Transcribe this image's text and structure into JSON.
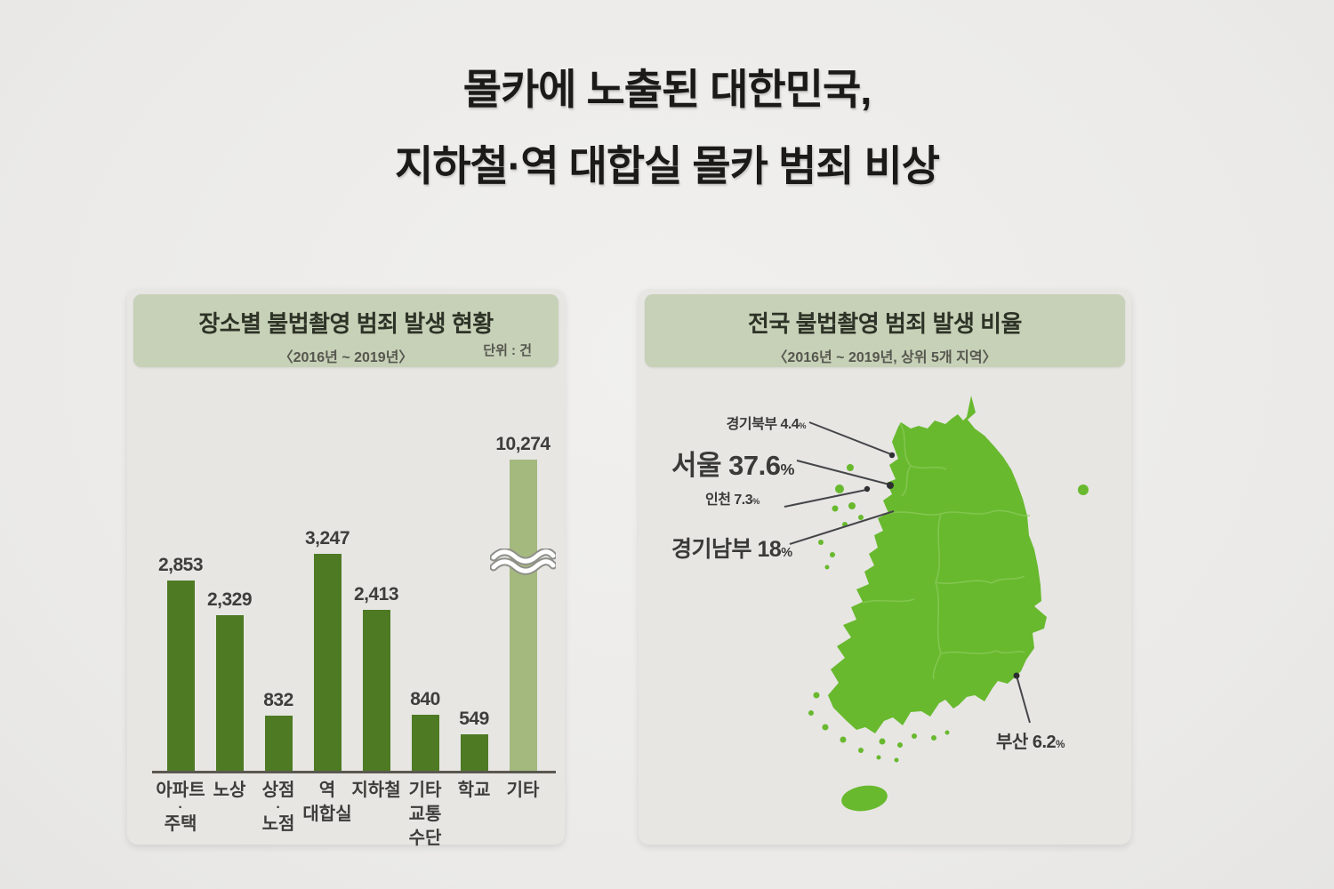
{
  "page_title": {
    "line1": "몰카에 노출된 대한민국,",
    "line2": "지하철·역 대합실 몰카 범죄 비상"
  },
  "left_chart": {
    "title": "장소별 불법촬영 범죄 발생 현황",
    "subtitle": "〈2016년 ~ 2019년〉",
    "unit_label": "단위 : 건",
    "colors": {
      "bar": "#4d7a23",
      "bar_highlight": "#a4b97e",
      "header_band": "#c6d1b7"
    },
    "bars": [
      {
        "label_lines": [
          "아파트",
          "·",
          "주택"
        ],
        "display": "2,853"
      },
      {
        "label_lines": [
          "노상"
        ],
        "display": "2,329"
      },
      {
        "label_lines": [
          "상점",
          "·",
          "노점"
        ],
        "display": "832"
      },
      {
        "label_lines": [
          "역",
          "대합실"
        ],
        "display": "3,247"
      },
      {
        "label_lines": [
          "지하철"
        ],
        "display": "2,413"
      },
      {
        "label_lines": [
          "기타",
          "교통",
          "수단"
        ],
        "display": "840"
      },
      {
        "label_lines": [
          "학교"
        ],
        "display": "549"
      },
      {
        "label_lines": [
          "기타"
        ],
        "display": "10,274",
        "highlight": true,
        "broken": true
      }
    ]
  },
  "map_panel": {
    "title": "전국 불법촬영 범죄 발생 비율",
    "subtitle": "〈2016년 ~ 2019년, 상위 5개 지역〉",
    "map_color": "#68b92e",
    "labels": [
      {
        "id": "gyeonggi_north",
        "name": "경기북부",
        "value": "4.4",
        "unit": "%"
      },
      {
        "id": "seoul",
        "name": "서울",
        "value": "37.6",
        "unit": "%"
      },
      {
        "id": "incheon",
        "name": "인천",
        "value": "7.3",
        "unit": "%"
      },
      {
        "id": "gyeonggi_south",
        "name": "경기남부",
        "value": "18",
        "unit": "%"
      },
      {
        "id": "busan",
        "name": "부산",
        "value": "6.2",
        "unit": "%"
      }
    ]
  },
  "chart_data": [
    {
      "type": "bar",
      "title": "장소별 불법촬영 범죄 발생 현황",
      "subtitle": "〈2016년 ~ 2019년〉",
      "unit": "건",
      "categories": [
        "아파트·주택",
        "노상",
        "상점·노점",
        "역 대합실",
        "지하철",
        "기타 교통수단",
        "학교",
        "기타"
      ],
      "values": [
        2853,
        2329,
        832,
        3247,
        2413,
        840,
        549,
        10274
      ],
      "ylim": [
        0,
        3500
      ],
      "annotations": "마지막 막대(기타)는 축 단절 기호(≈)와 밝은 녹색으로 강조, 값 10,274",
      "legend": false,
      "grid": false
    },
    {
      "type": "table",
      "title": "전국 불법촬영 범죄 발생 비율",
      "subtitle": "〈2016년 ~ 2019년, 상위 5개 지역〉",
      "categories": [
        "서울",
        "경기남부",
        "인천",
        "부산",
        "경기북부"
      ],
      "values": [
        37.6,
        18,
        7.3,
        6.2,
        4.4
      ],
      "unit": "%",
      "notes": "대한민국 지도 위 지역별 비율 라벨"
    }
  ]
}
